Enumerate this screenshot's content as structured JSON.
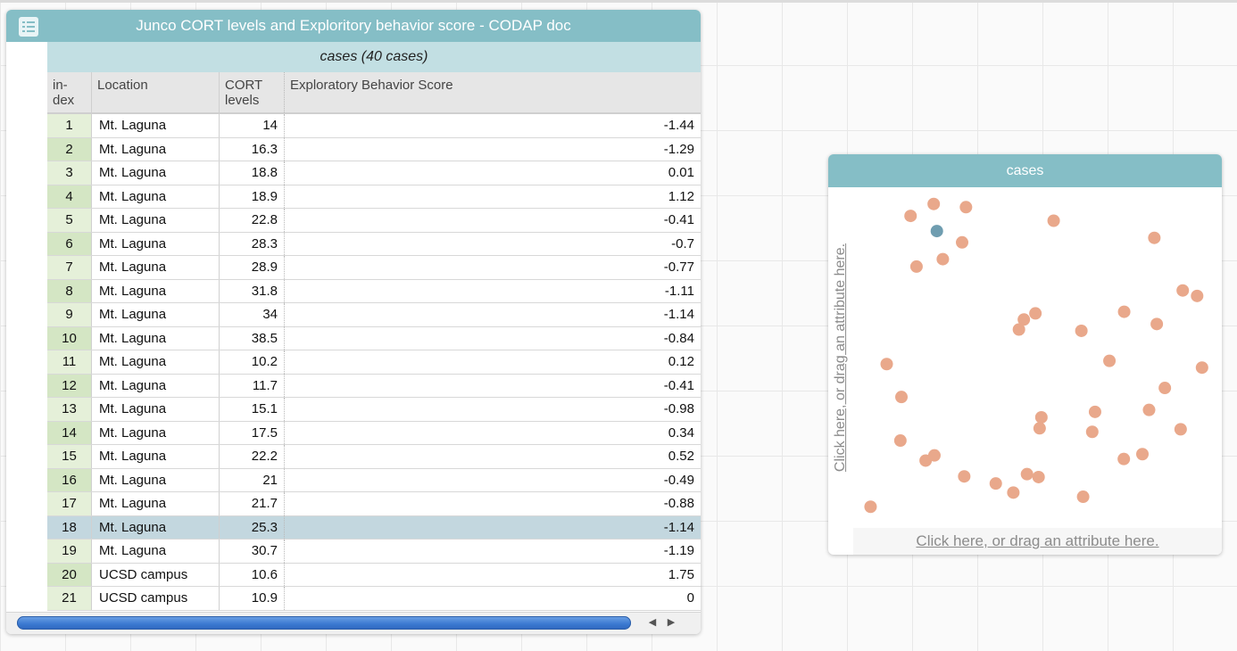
{
  "table": {
    "title": "Junco CORT levels and Exploritory behavior score - CODAP doc",
    "collection_title": "cases (40 cases)",
    "columns": {
      "index": "in-\ndex",
      "location": "Location",
      "cort": "CORT\nlevels",
      "exploratory": "Exploratory Behavior Score"
    },
    "rows": [
      {
        "index": "1",
        "location": "Mt. Laguna",
        "cort": "14",
        "exp": "-1.44"
      },
      {
        "index": "2",
        "location": "Mt. Laguna",
        "cort": "16.3",
        "exp": "-1.29"
      },
      {
        "index": "3",
        "location": "Mt. Laguna",
        "cort": "18.8",
        "exp": "0.01"
      },
      {
        "index": "4",
        "location": "Mt. Laguna",
        "cort": "18.9",
        "exp": "1.12"
      },
      {
        "index": "5",
        "location": "Mt. Laguna",
        "cort": "22.8",
        "exp": "-0.41"
      },
      {
        "index": "6",
        "location": "Mt. Laguna",
        "cort": "28.3",
        "exp": "-0.7"
      },
      {
        "index": "7",
        "location": "Mt. Laguna",
        "cort": "28.9",
        "exp": "-0.77"
      },
      {
        "index": "8",
        "location": "Mt. Laguna",
        "cort": "31.8",
        "exp": "-1.11"
      },
      {
        "index": "9",
        "location": "Mt. Laguna",
        "cort": "34",
        "exp": "-1.14"
      },
      {
        "index": "10",
        "location": "Mt. Laguna",
        "cort": "38.5",
        "exp": "-0.84"
      },
      {
        "index": "11",
        "location": "Mt. Laguna",
        "cort": "10.2",
        "exp": "0.12"
      },
      {
        "index": "12",
        "location": "Mt. Laguna",
        "cort": "11.7",
        "exp": "-0.41"
      },
      {
        "index": "13",
        "location": "Mt. Laguna",
        "cort": "15.1",
        "exp": "-0.98"
      },
      {
        "index": "14",
        "location": "Mt. Laguna",
        "cort": "17.5",
        "exp": "0.34"
      },
      {
        "index": "15",
        "location": "Mt. Laguna",
        "cort": "22.2",
        "exp": "0.52"
      },
      {
        "index": "16",
        "location": "Mt. Laguna",
        "cort": "21",
        "exp": "-0.49"
      },
      {
        "index": "17",
        "location": "Mt. Laguna",
        "cort": "21.7",
        "exp": "-0.88"
      },
      {
        "index": "18",
        "location": "Mt. Laguna",
        "cort": "25.3",
        "exp": "-1.14",
        "selected": true
      },
      {
        "index": "19",
        "location": "Mt. Laguna",
        "cort": "30.7",
        "exp": "-1.19"
      },
      {
        "index": "20",
        "location": "UCSD campus",
        "cort": "10.6",
        "exp": "1.75"
      },
      {
        "index": "21",
        "location": "UCSD campus",
        "cort": "10.9",
        "exp": "0"
      }
    ],
    "scroll_left_glyph": "◀",
    "scroll_right_glyph": "▶"
  },
  "graph": {
    "title": "cases",
    "y_axis_prompt": "Click here, or drag an attribute here.",
    "x_axis_prompt": "Click here, or drag an attribute here.",
    "colors": {
      "point": "#e9a88b",
      "selected_point": "#6f9db0"
    },
    "points": [
      {
        "x": 0.204,
        "y": 0.976,
        "selected": false
      },
      {
        "x": 0.138,
        "y": 0.939,
        "selected": false
      },
      {
        "x": 0.296,
        "y": 0.966,
        "selected": false
      },
      {
        "x": 0.546,
        "y": 0.924,
        "selected": false
      },
      {
        "x": 0.213,
        "y": 0.892,
        "selected": true
      },
      {
        "x": 0.285,
        "y": 0.857,
        "selected": false
      },
      {
        "x": 0.833,
        "y": 0.871,
        "selected": false
      },
      {
        "x": 0.155,
        "y": 0.782,
        "selected": false
      },
      {
        "x": 0.23,
        "y": 0.805,
        "selected": false
      },
      {
        "x": 0.914,
        "y": 0.708,
        "selected": false
      },
      {
        "x": 0.955,
        "y": 0.691,
        "selected": false
      },
      {
        "x": 0.747,
        "y": 0.642,
        "selected": false
      },
      {
        "x": 0.494,
        "y": 0.637,
        "selected": false
      },
      {
        "x": 0.461,
        "y": 0.618,
        "selected": false
      },
      {
        "x": 0.447,
        "y": 0.587,
        "selected": false
      },
      {
        "x": 0.625,
        "y": 0.583,
        "selected": false
      },
      {
        "x": 0.84,
        "y": 0.604,
        "selected": false
      },
      {
        "x": 0.07,
        "y": 0.48,
        "selected": false
      },
      {
        "x": 0.705,
        "y": 0.49,
        "selected": false
      },
      {
        "x": 0.969,
        "y": 0.469,
        "selected": false
      },
      {
        "x": 0.112,
        "y": 0.378,
        "selected": false
      },
      {
        "x": 0.863,
        "y": 0.406,
        "selected": false
      },
      {
        "x": 0.818,
        "y": 0.338,
        "selected": false
      },
      {
        "x": 0.664,
        "y": 0.332,
        "selected": false
      },
      {
        "x": 0.511,
        "y": 0.315,
        "selected": false
      },
      {
        "x": 0.506,
        "y": 0.281,
        "selected": false
      },
      {
        "x": 0.656,
        "y": 0.27,
        "selected": false
      },
      {
        "x": 0.908,
        "y": 0.278,
        "selected": false
      },
      {
        "x": 0.109,
        "y": 0.243,
        "selected": false
      },
      {
        "x": 0.206,
        "y": 0.197,
        "selected": false
      },
      {
        "x": 0.181,
        "y": 0.181,
        "selected": false
      },
      {
        "x": 0.746,
        "y": 0.186,
        "selected": false
      },
      {
        "x": 0.799,
        "y": 0.201,
        "selected": false
      },
      {
        "x": 0.291,
        "y": 0.132,
        "selected": false
      },
      {
        "x": 0.47,
        "y": 0.139,
        "selected": false
      },
      {
        "x": 0.503,
        "y": 0.13,
        "selected": false
      },
      {
        "x": 0.381,
        "y": 0.11,
        "selected": false
      },
      {
        "x": 0.431,
        "y": 0.082,
        "selected": false
      },
      {
        "x": 0.63,
        "y": 0.069,
        "selected": false
      },
      {
        "x": 0.024,
        "y": 0.038,
        "selected": false
      }
    ]
  }
}
